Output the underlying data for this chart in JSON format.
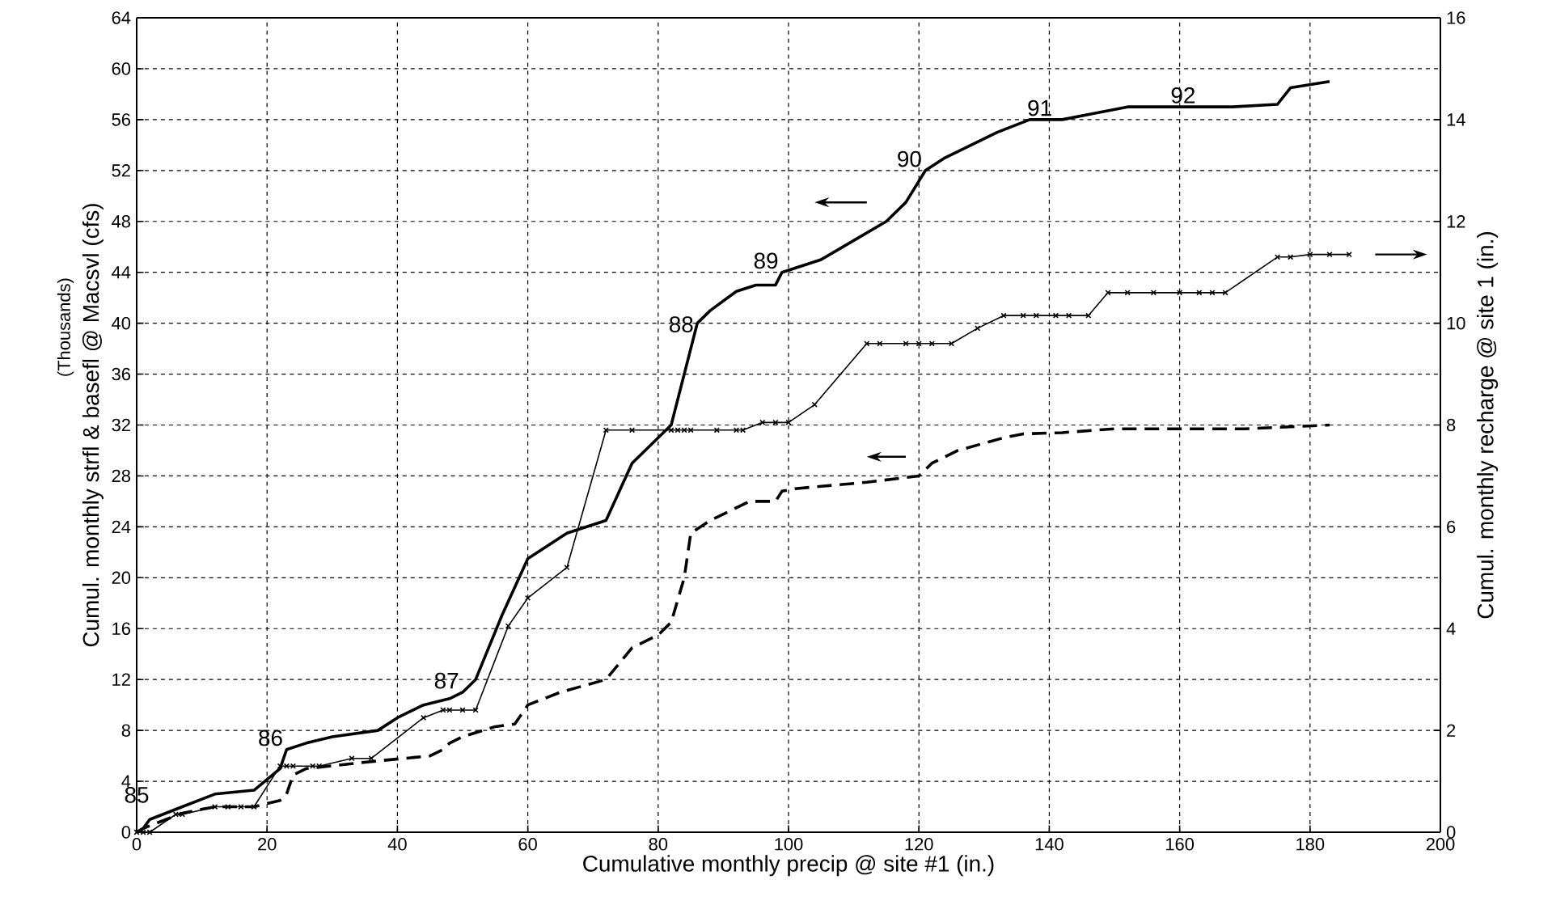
{
  "chart_data": {
    "type": "line",
    "xlabel": "Cumulative monthly precip @ site #1 (in.)",
    "ylabel": "Cumul. monthly strfl & basefl @ Macsvl (cfs)",
    "y2label": "Cumul. monthly recharge @ site 1 (in.)",
    "xlim": [
      0,
      200
    ],
    "xticks": [
      0,
      20,
      40,
      60,
      80,
      100,
      120,
      140,
      160,
      180,
      200
    ],
    "ylim": [
      0,
      64
    ],
    "yticks": [
      0,
      4,
      8,
      12,
      16,
      20,
      24,
      28,
      32,
      36,
      40,
      44,
      48,
      52,
      56,
      60,
      64
    ],
    "y2lim": [
      0,
      16
    ],
    "y2ticks": [
      0,
      2,
      4,
      6,
      8,
      10,
      12,
      14,
      16
    ],
    "grid": true,
    "series": [
      {
        "color": "#000000",
        "line_style": "solid",
        "marker": "none",
        "x": [
          0,
          1,
          2,
          7,
          12,
          18,
          22,
          23,
          26,
          30,
          37,
          40,
          44,
          48,
          50,
          52,
          56,
          60,
          66,
          72,
          76,
          80,
          82,
          83,
          85,
          86,
          88,
          92,
          95,
          98,
          99,
          102,
          105,
          110,
          115,
          118,
          121,
          124,
          128,
          132,
          137,
          142,
          147,
          152,
          160,
          168,
          175,
          177,
          183
        ],
        "values": [
          0,
          0.3,
          1,
          2,
          3,
          3.3,
          5,
          6.5,
          7,
          7.5,
          8,
          9,
          10,
          10.5,
          11,
          12,
          17,
          21.5,
          23.5,
          24.5,
          29,
          31,
          32,
          34,
          38,
          40,
          41,
          42.5,
          43,
          43,
          44,
          44.5,
          45,
          46.5,
          48,
          49.5,
          52,
          53,
          54,
          55,
          56,
          56,
          56.5,
          57,
          57,
          57,
          57.2,
          58.5,
          59
        ]
      },
      {
        "color": "#000000",
        "line_style": "dashed",
        "marker": "none",
        "x": [
          0,
          1,
          7,
          12,
          18,
          22,
          23,
          24,
          26,
          35,
          45,
          47,
          48,
          50,
          55,
          58,
          60,
          65,
          72,
          76,
          80,
          82,
          84,
          85,
          88,
          94,
          98,
          99,
          101,
          112,
          120,
          122,
          126,
          133,
          136,
          142,
          150,
          160,
          170,
          183
        ],
        "values": [
          0,
          0.3,
          1.5,
          2,
          2,
          2.5,
          3,
          4.5,
          5,
          5.5,
          6,
          6.5,
          7,
          7.5,
          8.3,
          8.5,
          10,
          11,
          12,
          14.5,
          15.5,
          16.5,
          20,
          23.5,
          24.5,
          26,
          26,
          26.8,
          27,
          27.5,
          28,
          29,
          30,
          31,
          31.3,
          31.4,
          31.7,
          31.7,
          31.7,
          32
        ]
      },
      {
        "color": "#000000",
        "line_style": "solid",
        "marker": "cross",
        "axis": "y2",
        "x": [
          0,
          1,
          2,
          6,
          7,
          12,
          14,
          16,
          18,
          22,
          23,
          24,
          27,
          28,
          33,
          36,
          44,
          47,
          48,
          50,
          52,
          57,
          60,
          66,
          72,
          76,
          82,
          83,
          84,
          85,
          89,
          92,
          93,
          96,
          98,
          100,
          104,
          112,
          114,
          118,
          120,
          122,
          125,
          129,
          133,
          136,
          138,
          141,
          143,
          146,
          149,
          152,
          156,
          160,
          163,
          165,
          167,
          175,
          177,
          180,
          183,
          186
        ],
        "values": [
          0,
          0,
          0,
          0.35,
          0.35,
          0.5,
          0.5,
          0.5,
          0.5,
          1.3,
          1.3,
          1.3,
          1.3,
          1.3,
          1.45,
          1.45,
          2.25,
          2.4,
          2.4,
          2.4,
          2.4,
          4.05,
          4.6,
          5.2,
          7.9,
          7.9,
          7.9,
          7.9,
          7.9,
          7.9,
          7.9,
          7.9,
          7.9,
          8.05,
          8.05,
          8.05,
          8.4,
          9.6,
          9.6,
          9.6,
          9.6,
          9.6,
          9.6,
          9.9,
          10.15,
          10.15,
          10.15,
          10.15,
          10.15,
          10.15,
          10.6,
          10.6,
          10.6,
          10.6,
          10.6,
          10.6,
          10.6,
          11.3,
          11.3,
          11.35,
          11.35,
          11.35
        ]
      }
    ],
    "annotations": [
      "(Thousands)",
      {
        "text": "85",
        "x": 0,
        "y": 0
      },
      {
        "text": "86",
        "x": 23,
        "y": 6.5
      },
      {
        "text": "87",
        "x": 50,
        "y": 11
      },
      {
        "text": "88",
        "x": 86,
        "y": 39
      },
      {
        "text": "89",
        "x": 99,
        "y": 44
      },
      {
        "text": "90",
        "x": 121,
        "y": 52
      },
      {
        "text": "91",
        "x": 141,
        "y": 56
      },
      {
        "text": "92",
        "x": 163,
        "y": 57
      }
    ]
  }
}
